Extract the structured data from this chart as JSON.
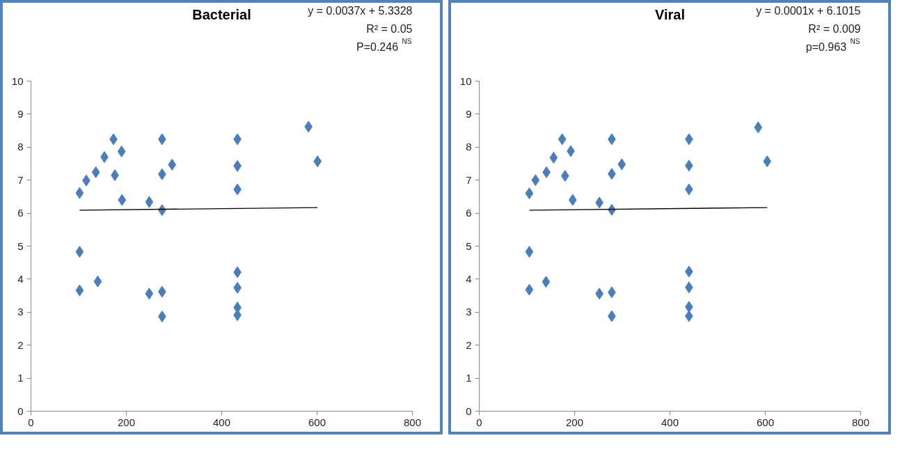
{
  "chart_data": [
    {
      "type": "scatter",
      "title": "Bacterial",
      "annotations": [
        "y = 0.0037x + 5.3328",
        "R² = 0.05",
        "P=0.246 $^{NS}$"
      ],
      "xlim": [
        0,
        800
      ],
      "ylim": [
        0,
        10
      ],
      "xticks": [
        0,
        200,
        400,
        600,
        800
      ],
      "yticks": [
        0,
        1,
        2,
        3,
        4,
        5,
        6,
        7,
        8,
        9,
        10
      ],
      "grid": false,
      "series": [
        {
          "marker": "diamond",
          "color": "#4a7ebb",
          "x": [
            102,
            116,
            136,
            154,
            173,
            176,
            190,
            191,
            102,
            102,
            140,
            248,
            248,
            275,
            275,
            275,
            275,
            275,
            296,
            433,
            433,
            433,
            433,
            433,
            433,
            433,
            582,
            601
          ],
          "values": [
            6.61,
            6.99,
            7.24,
            7.7,
            8.24,
            7.15,
            7.87,
            6.4,
            4.83,
            3.66,
            3.93,
            6.34,
            3.56,
            8.24,
            7.18,
            6.09,
            3.62,
            2.87,
            7.47,
            8.24,
            7.43,
            6.72,
            4.21,
            3.74,
            3.14,
            2.91,
            8.62,
            7.57
          ]
        },
        {
          "type": "line",
          "color": "#000000",
          "x": [
            102,
            601
          ],
          "values": [
            6.09,
            6.17
          ]
        }
      ]
    },
    {
      "type": "scatter",
      "title": "Viral",
      "annotations": [
        "y = 0.0001x + 6.1015",
        "R² = 0.009",
        "p=0.963 $^{NS}$"
      ],
      "xlim": [
        0,
        800
      ],
      "ylim": [
        0,
        10
      ],
      "xticks": [
        0,
        200,
        400,
        600,
        800
      ],
      "yticks": [
        0,
        1,
        2,
        3,
        4,
        5,
        6,
        7,
        8,
        9,
        10
      ],
      "grid": false,
      "series": [
        {
          "marker": "diamond",
          "color": "#4a7ebb",
          "x": [
            105,
            118,
            141,
            156,
            174,
            180,
            192,
            196,
            105,
            105,
            140,
            252,
            252,
            278,
            278,
            278,
            278,
            278,
            299,
            440,
            440,
            440,
            440,
            440,
            440,
            440,
            585,
            604
          ],
          "values": [
            6.6,
            7.0,
            7.24,
            7.68,
            8.24,
            7.13,
            7.88,
            6.4,
            4.83,
            3.68,
            3.92,
            6.32,
            3.56,
            8.24,
            7.19,
            6.1,
            3.6,
            2.88,
            7.48,
            8.24,
            7.44,
            6.72,
            4.23,
            3.75,
            3.16,
            2.88,
            8.6,
            7.57
          ]
        },
        {
          "type": "line",
          "color": "#000000",
          "x": [
            105,
            604
          ],
          "values": [
            6.09,
            6.17
          ]
        }
      ]
    }
  ]
}
